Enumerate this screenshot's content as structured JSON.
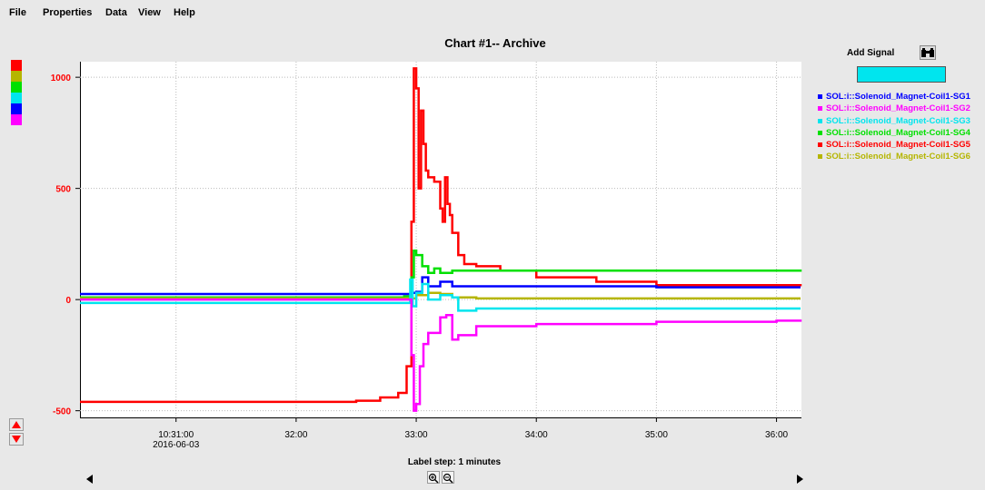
{
  "menu": [
    "File",
    "Properties",
    "Data",
    "View",
    "Help"
  ],
  "title": "Chart #1-- Archive",
  "label_step": "Label step: 1 minutes",
  "add_signal_label": "Add Signal",
  "signal_input_value": "",
  "swatch_colors": [
    "#ff0000",
    "#b5b500",
    "#00e000",
    "#00e5ee",
    "#0000ff",
    "#ff00ff"
  ],
  "legend": [
    {
      "label": "SOL:i::Solenoid_Magnet-Coil1-SG1",
      "color": "#0000ff"
    },
    {
      "label": "SOL:i::Solenoid_Magnet-Coil1-SG2",
      "color": "#ff00ff"
    },
    {
      "label": "SOL:i::Solenoid_Magnet-Coil1-SG3",
      "color": "#00e5ee"
    },
    {
      "label": "SOL:i::Solenoid_Magnet-Coil1-SG4",
      "color": "#00e000"
    },
    {
      "label": "SOL:i::Solenoid_Magnet-Coil1-SG5",
      "color": "#ff0000"
    },
    {
      "label": "SOL:i::Solenoid_Magnet-Coil1-SG6",
      "color": "#b5b500"
    }
  ],
  "chart_data": {
    "type": "line",
    "title": "Chart #1-- Archive",
    "x_unit": "minutes after 10:30:00, 2016-06-03",
    "xlim": [
      0.2,
      6.2
    ],
    "ylim": [
      -530,
      1070
    ],
    "yticks": [
      -500,
      0,
      500,
      1000
    ],
    "xticks": [
      {
        "value": 1,
        "label": "10:31:00",
        "sublabel": "2016-06-03"
      },
      {
        "value": 2,
        "label": "32:00"
      },
      {
        "value": 3,
        "label": "33:00"
      },
      {
        "value": 4,
        "label": "34:00"
      },
      {
        "value": 5,
        "label": "35:00"
      },
      {
        "value": 6,
        "label": "36:00"
      }
    ],
    "grid": true,
    "legend_position": "right",
    "series": [
      {
        "name": "SOL:i::Solenoid_Magnet-Coil1-SG5",
        "color": "#ff0000",
        "x": [
          0.2,
          2.5,
          2.7,
          2.85,
          2.92,
          2.96,
          2.98,
          3.0,
          3.02,
          3.04,
          3.06,
          3.08,
          3.1,
          3.15,
          3.2,
          3.22,
          3.24,
          3.26,
          3.28,
          3.3,
          3.35,
          3.4,
          3.5,
          3.7,
          4.0,
          4.5,
          5.0,
          6.2
        ],
        "y": [
          -460,
          -455,
          -440,
          -420,
          -300,
          350,
          1040,
          950,
          500,
          850,
          700,
          580,
          550,
          530,
          410,
          350,
          550,
          430,
          380,
          300,
          200,
          160,
          150,
          130,
          100,
          80,
          65,
          60
        ]
      },
      {
        "name": "SOL:i::Solenoid_Magnet-Coil1-SG4",
        "color": "#00e000",
        "x": [
          0.2,
          2.9,
          2.96,
          2.98,
          3.0,
          3.05,
          3.1,
          3.15,
          3.2,
          3.3,
          3.5,
          4.0,
          5.0,
          6.2
        ],
        "y": [
          10,
          15,
          100,
          220,
          200,
          150,
          120,
          140,
          120,
          130,
          130,
          130,
          130,
          125
        ]
      },
      {
        "name": "SOL:i::Solenoid_Magnet-Coil1-SG1",
        "color": "#0000ff",
        "x": [
          0.2,
          2.9,
          2.96,
          3.0,
          3.05,
          3.1,
          3.2,
          3.3,
          3.5,
          4.0,
          5.0,
          6.2
        ],
        "y": [
          25,
          25,
          30,
          35,
          100,
          60,
          80,
          60,
          60,
          60,
          55,
          55
        ]
      },
      {
        "name": "SOL:i::Solenoid_Magnet-Coil1-SG6",
        "color": "#b5b500",
        "x": [
          0.2,
          2.9,
          3.0,
          3.1,
          3.2,
          3.3,
          3.5,
          4.0,
          5.0,
          6.2
        ],
        "y": [
          5,
          5,
          20,
          30,
          25,
          10,
          5,
          5,
          5,
          5
        ]
      },
      {
        "name": "SOL:i::Solenoid_Magnet-Coil1-SG3",
        "color": "#00e5ee",
        "x": [
          0.2,
          2.9,
          2.95,
          2.97,
          3.0,
          3.05,
          3.1,
          3.2,
          3.3,
          3.35,
          3.5,
          4.0,
          5.0,
          6.2
        ],
        "y": [
          -15,
          -15,
          90,
          -30,
          30,
          70,
          0,
          20,
          10,
          -50,
          -40,
          -40,
          -40,
          -40
        ]
      },
      {
        "name": "SOL:i::Solenoid_Magnet-Coil1-SG2",
        "color": "#ff00ff",
        "x": [
          0.2,
          2.9,
          2.96,
          2.98,
          3.0,
          3.03,
          3.06,
          3.1,
          3.2,
          3.25,
          3.3,
          3.35,
          3.5,
          4.0,
          5.0,
          6.0,
          6.2
        ],
        "y": [
          0,
          0,
          -250,
          -500,
          -470,
          -300,
          -200,
          -150,
          -80,
          -70,
          -180,
          -160,
          -120,
          -110,
          -100,
          -95,
          -100
        ]
      }
    ]
  }
}
